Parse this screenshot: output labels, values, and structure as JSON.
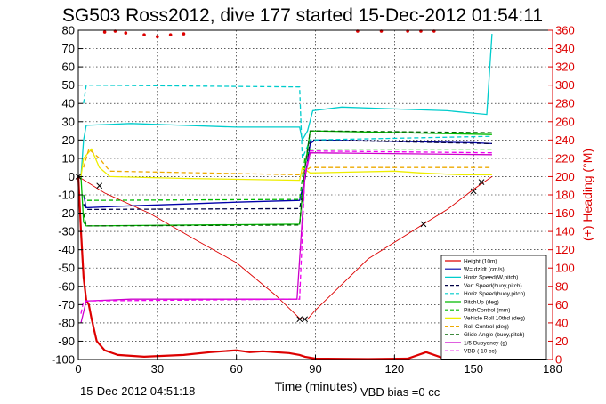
{
  "chart_data": {
    "type": "line",
    "title": "SG503 Ross2012, dive 177 started 15-Dec-2012 01:54:11",
    "xlabel": "Time (minutes)",
    "ylabel_right": "(+) Heading (°M)",
    "xlim": [
      0,
      180
    ],
    "ylim_left": [
      -100,
      80
    ],
    "ylim_right": [
      0,
      360
    ],
    "x_ticks": [
      "0",
      "30",
      "60",
      "90",
      "120",
      "150",
      "180"
    ],
    "y_left_ticks": [
      "-100",
      "-90",
      "-80",
      "-70",
      "-60",
      "-50",
      "-40",
      "-30",
      "-20",
      "-10",
      "0",
      "10",
      "20",
      "30",
      "40",
      "50",
      "60",
      "70",
      "80"
    ],
    "y_right_ticks": [
      "0",
      "20",
      "40",
      "60",
      "80",
      "100",
      "120",
      "140",
      "160",
      "180",
      "200",
      "220",
      "240",
      "260",
      "280",
      "300",
      "320",
      "340",
      "360"
    ],
    "grid": true,
    "legend_position": "bottom-right",
    "colors": {
      "heading": "#dd0000",
      "axis_right": "#dd0000"
    },
    "series": [
      {
        "name": "Height (10m)",
        "color": "#dd0000",
        "dash": "solid",
        "points": [
          [
            0,
            0
          ],
          [
            10,
            -9
          ],
          [
            27,
            -20
          ],
          [
            45,
            -35
          ],
          [
            60,
            -47
          ],
          [
            75,
            -65
          ],
          [
            84,
            -77.5
          ],
          [
            87,
            -78
          ],
          [
            90,
            -73
          ],
          [
            110,
            -45
          ],
          [
            131,
            -26
          ],
          [
            140,
            -18
          ],
          [
            150,
            -7
          ],
          [
            157,
            0
          ]
        ]
      },
      {
        "name": "W= dz/dt (cm/s)",
        "color": "#0000aa",
        "dash": "solid",
        "points": [
          [
            2,
            -10
          ],
          [
            3,
            -17
          ],
          [
            20,
            -16
          ],
          [
            40,
            -15
          ],
          [
            60,
            -14
          ],
          [
            84,
            -13
          ],
          [
            86,
            -1
          ],
          [
            88,
            18
          ],
          [
            90,
            20
          ],
          [
            110,
            19.5
          ],
          [
            130,
            19
          ],
          [
            150,
            18.5
          ],
          [
            157,
            18
          ]
        ]
      },
      {
        "name": "Horiz Speed(W,pitch)",
        "color": "#00cccc",
        "dash": "solid",
        "points": [
          [
            1,
            0
          ],
          [
            2,
            20
          ],
          [
            3,
            28
          ],
          [
            20,
            29
          ],
          [
            40,
            28
          ],
          [
            60,
            27
          ],
          [
            84,
            27
          ],
          [
            85,
            20
          ],
          [
            87,
            25
          ],
          [
            89,
            36
          ],
          [
            100,
            38
          ],
          [
            120,
            37
          ],
          [
            140,
            36
          ],
          [
            155,
            34
          ],
          [
            157,
            78
          ]
        ]
      },
      {
        "name": "Vert Speed(buoy,pitch)",
        "color": "#000044",
        "dash": "dashed",
        "points": [
          [
            2,
            -15
          ],
          [
            3,
            -18
          ],
          [
            84,
            -17.5
          ],
          [
            86,
            -2
          ],
          [
            88,
            20
          ],
          [
            157,
            18
          ]
        ]
      },
      {
        "name": "Horiz Speed(buoy,pitch)",
        "color": "#00cccc",
        "dash": "dashed",
        "points": [
          [
            2,
            40
          ],
          [
            3,
            50
          ],
          [
            84,
            49
          ],
          [
            85,
            10
          ],
          [
            88,
            20
          ],
          [
            157,
            22
          ]
        ]
      },
      {
        "name": "PitchUp (deg)",
        "color": "#00bb00",
        "dash": "solid",
        "points": [
          [
            1,
            0
          ],
          [
            2,
            -25
          ],
          [
            3,
            -27
          ],
          [
            84,
            -26
          ],
          [
            86,
            5
          ],
          [
            88,
            25
          ],
          [
            157,
            23
          ]
        ]
      },
      {
        "name": "PitchControl (mm)",
        "color": "#00bb00",
        "dash": "dashed",
        "points": [
          [
            2,
            -10
          ],
          [
            3,
            -13
          ],
          [
            84,
            -12.5
          ],
          [
            86,
            10
          ],
          [
            88,
            15
          ],
          [
            157,
            15
          ]
        ]
      },
      {
        "name": "Vehicle Roll 10tbd (deg)",
        "color": "#eeee00",
        "dash": "solid",
        "points": [
          [
            1,
            0
          ],
          [
            2,
            10
          ],
          [
            5,
            15
          ],
          [
            8,
            5
          ],
          [
            12,
            0
          ],
          [
            40,
            -1
          ],
          [
            84,
            -2
          ],
          [
            85,
            5
          ],
          [
            88,
            2
          ],
          [
            120,
            3
          ],
          [
            130,
            2
          ],
          [
            145,
            1
          ],
          [
            157,
            1
          ]
        ]
      },
      {
        "name": "Roll Control (deg)",
        "color": "#eeaa00",
        "dash": "dashed",
        "points": [
          [
            2,
            5
          ],
          [
            4,
            15
          ],
          [
            8,
            10
          ],
          [
            12,
            3
          ],
          [
            84,
            1
          ],
          [
            88,
            5
          ],
          [
            157,
            5
          ]
        ]
      },
      {
        "name": "Glide Angle (buoy,pitch)",
        "color": "#006600",
        "dash": "dashed",
        "points": [
          [
            2,
            -20
          ],
          [
            3,
            -27
          ],
          [
            84,
            -26.5
          ],
          [
            86,
            5
          ],
          [
            88,
            25
          ],
          [
            157,
            24
          ]
        ]
      },
      {
        "name": "1/5 Buoyancy (g)",
        "color": "#cc00cc",
        "dash": "solid",
        "points": [
          [
            1,
            -80
          ],
          [
            3,
            -68
          ],
          [
            20,
            -67
          ],
          [
            60,
            -67
          ],
          [
            83,
            -67
          ],
          [
            86,
            0
          ],
          [
            88,
            13
          ],
          [
            157,
            12
          ]
        ]
      },
      {
        "name": "VBD ( 10 cc)",
        "color": "#ee00ee",
        "dash": "dashed",
        "points": [
          [
            1,
            -75
          ],
          [
            2,
            -68
          ],
          [
            84,
            -67
          ],
          [
            86,
            2
          ],
          [
            88,
            14
          ],
          [
            157,
            13
          ]
        ]
      }
    ],
    "heading_series": {
      "name": "Heading",
      "color": "#dd0000",
      "axis": "right",
      "points": [
        [
          0,
          200
        ],
        [
          1,
          140
        ],
        [
          2,
          90
        ],
        [
          3,
          65
        ],
        [
          4,
          60
        ],
        [
          5,
          45
        ],
        [
          7,
          20
        ],
        [
          10,
          10
        ],
        [
          15,
          5
        ],
        [
          25,
          3
        ],
        [
          40,
          5
        ],
        [
          50,
          8
        ],
        [
          60,
          10
        ],
        [
          65,
          8
        ],
        [
          70,
          9
        ],
        [
          75,
          8
        ],
        [
          80,
          7
        ],
        [
          84,
          5
        ],
        [
          86,
          3
        ],
        [
          90,
          1
        ],
        [
          110,
          0.5
        ],
        [
          125,
          1
        ],
        [
          132,
          8
        ],
        [
          138,
          2
        ],
        [
          145,
          1
        ],
        [
          157,
          1
        ]
      ]
    },
    "heading_top_points": [
      [
        10,
        358
      ],
      [
        14,
        359
      ],
      [
        18,
        357
      ],
      [
        25,
        355
      ],
      [
        30,
        353
      ],
      [
        35,
        355
      ],
      [
        40,
        356
      ],
      [
        106,
        359
      ],
      [
        115,
        359
      ],
      [
        125,
        359
      ],
      [
        130,
        359
      ],
      [
        135,
        359
      ]
    ],
    "markers": [
      [
        0,
        0
      ],
      [
        8,
        -5
      ],
      [
        84,
        -78
      ],
      [
        86,
        -78
      ],
      [
        131,
        -26
      ],
      [
        150,
        -8
      ],
      [
        153,
        -3
      ]
    ],
    "footer": {
      "timestamp": "15-Dec-2012 04:51:18",
      "vbd_bias": "VBD bias =0 cc"
    }
  }
}
